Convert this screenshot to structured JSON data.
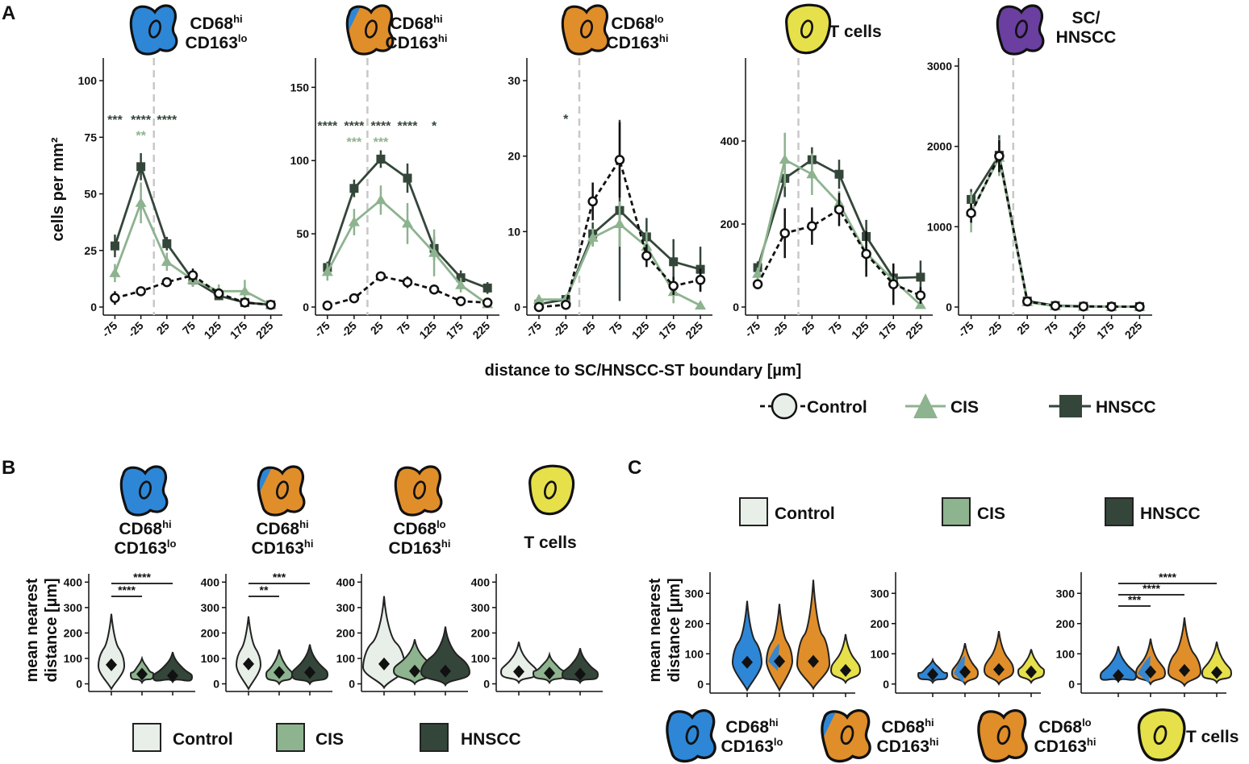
{
  "colors": {
    "control": "#e8efe8",
    "cis": "#8db38f",
    "hnscc": "#34463a",
    "cd68hi_cd163lo": "#2e86d6",
    "cd68hi_cd163hi_a": "#2e86d6",
    "cd68hi_cd163hi_b": "#e08e2a",
    "cd68lo_cd163hi": "#e08e2a",
    "tcells": "#e6e04a",
    "sc_hnscc": "#6a3f9f"
  },
  "cell_types": [
    {
      "key": "cd68hi_cd163lo",
      "line1": "CD68",
      "sup1": "hi",
      "line2": "CD163",
      "sup2": "lo",
      "icon": "macrophage-blue-icon"
    },
    {
      "key": "cd68hi_cd163hi",
      "line1": "CD68",
      "sup1": "hi",
      "line2": "CD163",
      "sup2": "hi",
      "icon": "macrophage-blue-orange-icon"
    },
    {
      "key": "cd68lo_cd163hi",
      "line1": "CD68",
      "sup1": "lo",
      "line2": "CD163",
      "sup2": "hi",
      "icon": "macrophage-orange-icon"
    },
    {
      "key": "tcells",
      "line1": "T cells",
      "sup1": "",
      "line2": "",
      "sup2": "",
      "icon": "tcell-yellow-icon"
    },
    {
      "key": "sc_hnscc",
      "line1": "SC/",
      "sup1": "",
      "line2": "HNSCC",
      "sup2": "",
      "icon": "tumor-cell-purple-icon"
    }
  ],
  "panelA": {
    "label": "A",
    "ylabel": "cells per mm²",
    "xlabel": "distance to SC/HNSCC-ST boundary [µm]",
    "legend": [
      {
        "name": "Control",
        "marker": "circle"
      },
      {
        "name": "CIS",
        "marker": "triangle"
      },
      {
        "name": "HNSCC",
        "marker": "square"
      }
    ]
  },
  "panelB": {
    "label": "B",
    "ylabel_line1": "mean nearest",
    "ylabel_line2": "distance [µm]",
    "legend": [
      "Control",
      "CIS",
      "HNSCC"
    ]
  },
  "panelC": {
    "label": "C",
    "ylabel_line1": "mean nearest",
    "ylabel_line2": "distance [µm]",
    "legend": [
      "Control",
      "CIS",
      "HNSCC"
    ],
    "cell_legend": [
      "CD68hi CD163lo",
      "CD68hi CD163hi",
      "CD68lo CD163hi",
      "T cells"
    ]
  },
  "chart_data": [
    {
      "type": "line",
      "title": "CD68hi CD163lo",
      "x": [
        -75,
        -25,
        25,
        75,
        125,
        175,
        225
      ],
      "xtick_labels": [
        "-75",
        "-25",
        "25",
        "75",
        "125",
        "175",
        "225"
      ],
      "ylim": [
        0,
        110
      ],
      "yticks": [
        0,
        25,
        50,
        75,
        100
      ],
      "ytick_labels": [
        "0",
        "25",
        "50",
        "75",
        "100"
      ],
      "boundary_x": 0,
      "ylabel": "cells per mm²",
      "series": [
        {
          "name": "Control",
          "values": [
            4,
            7,
            11,
            14,
            6,
            2,
            1
          ],
          "errors": [
            3,
            2,
            2,
            3,
            2,
            1,
            1
          ]
        },
        {
          "name": "CIS",
          "values": [
            15,
            46,
            20,
            12,
            7,
            7,
            1
          ],
          "errors": [
            4,
            9,
            4,
            3,
            3,
            5,
            1
          ]
        },
        {
          "name": "HNSCC",
          "values": [
            27,
            62,
            28,
            12,
            5,
            2,
            1
          ],
          "errors": [
            5,
            6,
            3,
            3,
            1,
            1,
            1
          ]
        }
      ],
      "annotations": [
        {
          "x": -75,
          "text": "***",
          "y": 83,
          "series": "HNSCC"
        },
        {
          "x": -25,
          "text": "****",
          "y": 83,
          "series": "HNSCC"
        },
        {
          "x": -25,
          "text": "**",
          "y": 76,
          "series": "CIS"
        },
        {
          "x": 25,
          "text": "****",
          "y": 83,
          "series": "HNSCC"
        }
      ]
    },
    {
      "type": "line",
      "title": "CD68hi CD163hi",
      "x": [
        -75,
        -25,
        25,
        75,
        125,
        175,
        225
      ],
      "xtick_labels": [
        "-75",
        "-25",
        "25",
        "75",
        "125",
        "175",
        "225"
      ],
      "ylim": [
        0,
        170
      ],
      "yticks": [
        0,
        50,
        100,
        150
      ],
      "ytick_labels": [
        "0",
        "50",
        "100",
        "150"
      ],
      "boundary_x": 0,
      "series": [
        {
          "name": "Control",
          "values": [
            1,
            6,
            21,
            17,
            12,
            4,
            3
          ],
          "errors": [
            1,
            2,
            3,
            4,
            3,
            2,
            2
          ]
        },
        {
          "name": "CIS",
          "values": [
            24,
            58,
            73,
            57,
            37,
            15,
            2
          ],
          "errors": [
            6,
            9,
            10,
            14,
            16,
            5,
            2
          ]
        },
        {
          "name": "HNSCC",
          "values": [
            27,
            81,
            101,
            88,
            40,
            20,
            13
          ],
          "errors": [
            4,
            6,
            6,
            10,
            8,
            5,
            4
          ]
        }
      ],
      "annotations": [
        {
          "x": -75,
          "text": "****",
          "y": 124,
          "series": "HNSCC"
        },
        {
          "x": -25,
          "text": "****",
          "y": 124,
          "series": "HNSCC"
        },
        {
          "x": -25,
          "text": "***",
          "y": 113,
          "series": "CIS"
        },
        {
          "x": 25,
          "text": "****",
          "y": 124,
          "series": "HNSCC"
        },
        {
          "x": 25,
          "text": "***",
          "y": 113,
          "series": "CIS"
        },
        {
          "x": 75,
          "text": "****",
          "y": 124,
          "series": "HNSCC"
        },
        {
          "x": 125,
          "text": "*",
          "y": 124,
          "series": "HNSCC"
        }
      ]
    },
    {
      "type": "line",
      "title": "CD68lo CD163hi",
      "x": [
        -75,
        -25,
        25,
        75,
        125,
        175,
        225
      ],
      "xtick_labels": [
        "-75",
        "-25",
        "25",
        "75",
        "125",
        "175",
        "225"
      ],
      "ylim": [
        0,
        33
      ],
      "yticks": [
        0,
        10,
        20,
        30
      ],
      "ytick_labels": [
        "0",
        "10",
        "20",
        "30"
      ],
      "boundary_x": 0,
      "series": [
        {
          "name": "Control",
          "values": [
            0,
            0.3,
            14,
            19.5,
            6.8,
            2.8,
            3.6
          ],
          "errors": [
            0.3,
            0.4,
            2.5,
            5,
            1.5,
            1.2,
            1.5
          ]
        },
        {
          "name": "CIS",
          "values": [
            1,
            1,
            9.2,
            11,
            8,
            2,
            0.2
          ],
          "errors": [
            0.6,
            0.6,
            1.2,
            3,
            2,
            1.5,
            0.5
          ]
        },
        {
          "name": "HNSCC",
          "values": [
            0.4,
            1,
            9.7,
            12.8,
            9.3,
            6,
            5
          ],
          "errors": [
            0.4,
            0.6,
            1.5,
            12,
            2.5,
            3,
            3
          ]
        }
      ],
      "annotations": [
        {
          "x": -25,
          "text": "*",
          "y": 25,
          "series": "HNSCC"
        }
      ]
    },
    {
      "type": "line",
      "title": "T cells",
      "x": [
        -75,
        -25,
        25,
        75,
        125,
        175,
        225
      ],
      "xtick_labels": [
        "-75",
        "-25",
        "25",
        "75",
        "125",
        "175",
        "225"
      ],
      "ylim": [
        0,
        600
      ],
      "yticks": [
        0,
        200,
        400
      ],
      "ytick_labels": [
        "0",
        "200",
        "400"
      ],
      "boundary_x": 0,
      "series": [
        {
          "name": "Control",
          "values": [
            55,
            178,
            195,
            235,
            128,
            55,
            28
          ],
          "errors": [
            12,
            60,
            45,
            40,
            55,
            50,
            20
          ]
        },
        {
          "name": "CIS",
          "values": [
            80,
            355,
            320,
            250,
            130,
            65,
            5
          ],
          "errors": [
            15,
            65,
            50,
            30,
            30,
            25,
            5
          ]
        },
        {
          "name": "HNSCC",
          "values": [
            95,
            310,
            355,
            320,
            170,
            70,
            72
          ],
          "errors": [
            15,
            45,
            30,
            35,
            40,
            30,
            40
          ]
        }
      ]
    },
    {
      "type": "line",
      "title": "SC/ HNSCC",
      "x": [
        -75,
        -25,
        25,
        75,
        125,
        175,
        225
      ],
      "xtick_labels": [
        "-75",
        "-25",
        "25",
        "75",
        "125",
        "175",
        "225"
      ],
      "ylim": [
        0,
        3100
      ],
      "yticks": [
        0,
        1000,
        2000,
        3000
      ],
      "ytick_labels": [
        "0",
        "1000",
        "2000",
        "3000"
      ],
      "boundary_x": 0,
      "series": [
        {
          "name": "Control",
          "values": [
            1170,
            1880,
            70,
            15,
            8,
            5,
            4
          ],
          "errors": [
            120,
            200,
            20,
            10,
            5,
            4,
            3
          ]
        },
        {
          "name": "CIS",
          "values": [
            1180,
            1860,
            60,
            12,
            6,
            5,
            4
          ],
          "errors": [
            250,
            230,
            20,
            8,
            4,
            3,
            3
          ]
        },
        {
          "name": "HNSCC",
          "values": [
            1340,
            1890,
            75,
            18,
            9,
            6,
            5
          ],
          "errors": [
            130,
            250,
            20,
            10,
            5,
            4,
            3
          ]
        }
      ]
    },
    {
      "type": "violin",
      "panel": "B",
      "title": "CD68hi CD163lo",
      "categories": [
        "Control",
        "CIS",
        "HNSCC"
      ],
      "ylim": [
        -30,
        420
      ],
      "yticks": [
        0,
        100,
        200,
        300,
        400
      ],
      "ytick_labels": [
        "0",
        "100",
        "200",
        "300",
        "400"
      ],
      "means": [
        75,
        38,
        32
      ],
      "maxima": [
        275,
        100,
        125
      ],
      "minima": [
        -20,
        5,
        8
      ],
      "modes": [
        70,
        35,
        25
      ],
      "half_widths": [
        16,
        14,
        24
      ],
      "brackets": [
        {
          "from": 0,
          "to": 1,
          "label": "****"
        },
        {
          "from": 0,
          "to": 2,
          "label": "****"
        }
      ]
    },
    {
      "type": "violin",
      "panel": "B",
      "title": "CD68hi CD163hi",
      "categories": [
        "Control",
        "CIS",
        "HNSCC"
      ],
      "ylim": [
        -30,
        420
      ],
      "yticks": [
        0,
        100,
        200,
        300,
        400
      ],
      "ytick_labels": [
        "0",
        "100",
        "200",
        "300",
        "400"
      ],
      "means": [
        78,
        45,
        45
      ],
      "maxima": [
        265,
        135,
        155
      ],
      "minima": [
        -20,
        0,
        0
      ],
      "modes": [
        75,
        35,
        35
      ],
      "half_widths": [
        15,
        16,
        22
      ],
      "brackets": [
        {
          "from": 0,
          "to": 1,
          "label": "**"
        },
        {
          "from": 0,
          "to": 2,
          "label": "***"
        }
      ]
    },
    {
      "type": "violin",
      "panel": "B",
      "title": "CD68lo CD163hi",
      "categories": [
        "Control",
        "CIS",
        "HNSCC"
      ],
      "ylim": [
        -30,
        420
      ],
      "yticks": [
        0,
        100,
        200,
        300,
        400
      ],
      "ytick_labels": [
        "0",
        "100",
        "200",
        "300",
        "400"
      ],
      "means": [
        78,
        50,
        50
      ],
      "maxima": [
        345,
        175,
        225
      ],
      "minima": [
        -15,
        0,
        -5
      ],
      "modes": [
        65,
        50,
        45
      ],
      "half_widths": [
        26,
        26,
        30
      ],
      "brackets": []
    },
    {
      "type": "violin",
      "panel": "B",
      "title": "T cells",
      "categories": [
        "Control",
        "CIS",
        "HNSCC"
      ],
      "ylim": [
        -30,
        420
      ],
      "yticks": [
        0,
        100,
        200,
        300,
        400
      ],
      "ytick_labels": [
        "0",
        "100",
        "200",
        "300",
        "400"
      ],
      "means": [
        48,
        42,
        38
      ],
      "maxima": [
        165,
        115,
        140
      ],
      "minima": [
        5,
        5,
        5
      ],
      "modes": [
        45,
        40,
        35
      ],
      "half_widths": [
        22,
        20,
        22
      ],
      "brackets": []
    },
    {
      "type": "violin",
      "panel": "C",
      "title": "Control",
      "categories": [
        "CD68hi CD163lo",
        "CD68hi CD163hi",
        "CD68lo CD163hi",
        "T cells"
      ],
      "ylim": [
        -30,
        370
      ],
      "yticks": [
        0,
        100,
        200,
        300
      ],
      "ytick_labels": [
        "0",
        "100",
        "200",
        "300"
      ],
      "means": [
        72,
        75,
        75,
        45
      ],
      "maxima": [
        275,
        265,
        345,
        165
      ],
      "minima": [
        -20,
        -20,
        -15,
        5
      ],
      "modes": [
        70,
        75,
        65,
        45
      ],
      "half_widths": [
        18,
        16,
        20,
        18
      ],
      "brackets": []
    },
    {
      "type": "violin",
      "panel": "C",
      "title": "CIS",
      "categories": [
        "CD68hi CD163lo",
        "CD68hi CD163hi",
        "CD68lo CD163hi",
        "T cells"
      ],
      "ylim": [
        -30,
        370
      ],
      "yticks": [
        0,
        100,
        200,
        300
      ],
      "ytick_labels": [
        "0",
        "100",
        "200",
        "300"
      ],
      "means": [
        32,
        40,
        48,
        40
      ],
      "maxima": [
        80,
        135,
        175,
        115
      ],
      "minima": [
        5,
        0,
        0,
        5
      ],
      "modes": [
        30,
        35,
        45,
        40
      ],
      "half_widths": [
        18,
        16,
        18,
        16
      ],
      "brackets": []
    },
    {
      "type": "violin",
      "panel": "C",
      "title": "HNSCC",
      "categories": [
        "CD68hi CD163lo",
        "CD68hi CD163hi",
        "CD68lo CD163hi",
        "T cells"
      ],
      "ylim": [
        -30,
        370
      ],
      "yticks": [
        0,
        100,
        200,
        300
      ],
      "ytick_labels": [
        "0",
        "100",
        "200",
        "300"
      ],
      "means": [
        28,
        40,
        45,
        38
      ],
      "maxima": [
        125,
        150,
        220,
        140
      ],
      "minima": [
        8,
        0,
        -5,
        5
      ],
      "modes": [
        25,
        35,
        40,
        35
      ],
      "half_widths": [
        22,
        18,
        20,
        18
      ],
      "brackets": [
        {
          "from": 0,
          "to": 1,
          "label": "***"
        },
        {
          "from": 0,
          "to": 2,
          "label": "****"
        },
        {
          "from": 0,
          "to": 3,
          "label": "****"
        }
      ]
    }
  ]
}
